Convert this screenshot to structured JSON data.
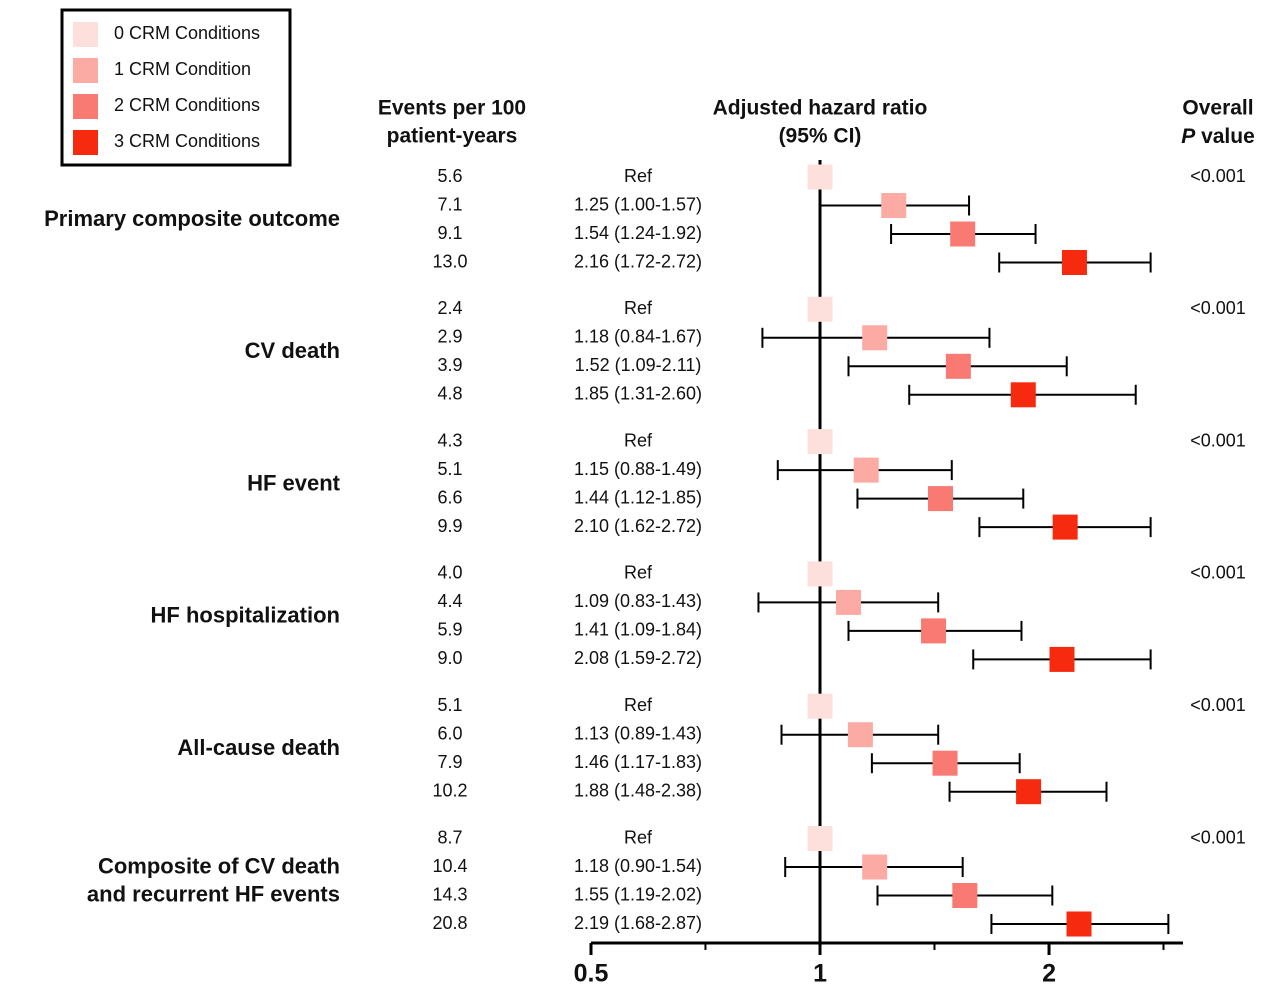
{
  "chart_data": {
    "type": "forest",
    "series": [
      {
        "name": "0 CRM Conditions",
        "color": "#fde0dc"
      },
      {
        "name": "1 CRM Condition",
        "color": "#fcaba4"
      },
      {
        "name": "2 CRM Conditions",
        "color": "#f87a72"
      },
      {
        "name": "3 CRM Conditions",
        "color": "#f52a0e"
      }
    ],
    "events_header": [
      "Events per 100",
      "patient-years"
    ],
    "hr_header": [
      "Adjusted hazard ratio",
      "(95% CI)"
    ],
    "p_header": {
      "line1": "Overall",
      "italic": "P",
      "line2": " value"
    },
    "xlim": [
      0.5,
      3
    ],
    "xticks": [
      0.5,
      1,
      2
    ],
    "xminorticks": [
      0.707,
      1.414,
      2.828
    ],
    "log_scale": true,
    "groups": [
      {
        "name": [
          "Primary composite outcome"
        ],
        "p_value": "<0.001",
        "rows": [
          {
            "events": "5.6",
            "label": "Ref",
            "value": 1,
            "lo": null,
            "hi": null
          },
          {
            "events": "7.1",
            "label": "1.25 (1.00-1.57)",
            "value": 1.25,
            "lo": 1.0,
            "hi": 1.57
          },
          {
            "events": "9.1",
            "label": "1.54 (1.24-1.92)",
            "value": 1.54,
            "lo": 1.24,
            "hi": 1.92
          },
          {
            "events": "13.0",
            "label": "2.16 (1.72-2.72)",
            "value": 2.16,
            "lo": 1.72,
            "hi": 2.72
          }
        ]
      },
      {
        "name": [
          "CV death"
        ],
        "p_value": "<0.001",
        "rows": [
          {
            "events": "2.4",
            "label": "Ref",
            "value": 1,
            "lo": null,
            "hi": null
          },
          {
            "events": "2.9",
            "label": "1.18 (0.84-1.67)",
            "value": 1.18,
            "lo": 0.84,
            "hi": 1.67
          },
          {
            "events": "3.9",
            "label": "1.52 (1.09-2.11)",
            "value": 1.52,
            "lo": 1.09,
            "hi": 2.11
          },
          {
            "events": "4.8",
            "label": "1.85 (1.31-2.60)",
            "value": 1.85,
            "lo": 1.31,
            "hi": 2.6
          }
        ]
      },
      {
        "name": [
          "HF event"
        ],
        "p_value": "<0.001",
        "rows": [
          {
            "events": "4.3",
            "label": "Ref",
            "value": 1,
            "lo": null,
            "hi": null
          },
          {
            "events": "5.1",
            "label": "1.15 (0.88-1.49)",
            "value": 1.15,
            "lo": 0.88,
            "hi": 1.49
          },
          {
            "events": "6.6",
            "label": "1.44 (1.12-1.85)",
            "value": 1.44,
            "lo": 1.12,
            "hi": 1.85
          },
          {
            "events": "9.9",
            "label": "2.10 (1.62-2.72)",
            "value": 2.1,
            "lo": 1.62,
            "hi": 2.72
          }
        ]
      },
      {
        "name": [
          "HF hospitalization"
        ],
        "p_value": "<0.001",
        "rows": [
          {
            "events": "4.0",
            "label": "Ref",
            "value": 1,
            "lo": null,
            "hi": null
          },
          {
            "events": "4.4",
            "label": "1.09 (0.83-1.43)",
            "value": 1.09,
            "lo": 0.83,
            "hi": 1.43
          },
          {
            "events": "5.9",
            "label": "1.41 (1.09-1.84)",
            "value": 1.41,
            "lo": 1.09,
            "hi": 1.84
          },
          {
            "events": "9.0",
            "label": "2.08 (1.59-2.72)",
            "value": 2.08,
            "lo": 1.59,
            "hi": 2.72
          }
        ]
      },
      {
        "name": [
          "All-cause death"
        ],
        "p_value": "<0.001",
        "rows": [
          {
            "events": "5.1",
            "label": "Ref",
            "value": 1,
            "lo": null,
            "hi": null
          },
          {
            "events": "6.0",
            "label": "1.13 (0.89-1.43)",
            "value": 1.13,
            "lo": 0.89,
            "hi": 1.43
          },
          {
            "events": "7.9",
            "label": "1.46 (1.17-1.83)",
            "value": 1.46,
            "lo": 1.17,
            "hi": 1.83
          },
          {
            "events": "10.2",
            "label": "1.88 (1.48-2.38)",
            "value": 1.88,
            "lo": 1.48,
            "hi": 2.38
          }
        ]
      },
      {
        "name": [
          "Composite of CV death",
          "and recurrent HF events"
        ],
        "p_value": "<0.001",
        "rows": [
          {
            "events": "8.7",
            "label": "Ref",
            "value": 1,
            "lo": null,
            "hi": null
          },
          {
            "events": "10.4",
            "label": "1.18 (0.90-1.54)",
            "value": 1.18,
            "lo": 0.9,
            "hi": 1.54
          },
          {
            "events": "14.3",
            "label": "1.55 (1.19-2.02)",
            "value": 1.55,
            "lo": 1.19,
            "hi": 2.02
          },
          {
            "events": "20.8",
            "label": "2.19 (1.68-2.87)",
            "value": 2.19,
            "lo": 1.68,
            "hi": 2.87
          }
        ]
      }
    ]
  }
}
